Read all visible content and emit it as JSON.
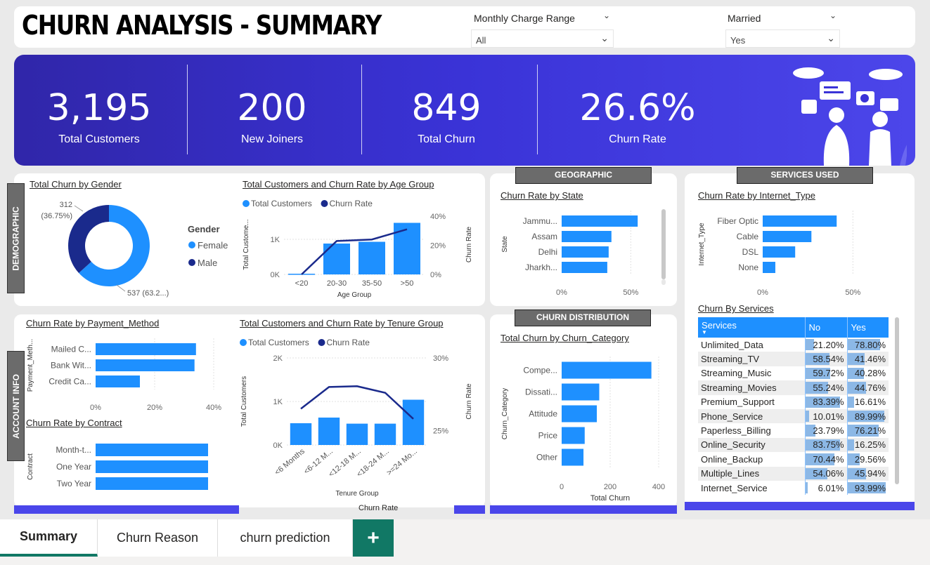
{
  "header": {
    "title": "CHURN ANALYSIS - SUMMARY",
    "slicer_charge": {
      "label": "Monthly Charge Range",
      "value": "All"
    },
    "slicer_married": {
      "label": "Married",
      "value": "Yes"
    }
  },
  "kpis": [
    {
      "value": "3,195",
      "label": "Total Customers"
    },
    {
      "value": "200",
      "label": "New Joiners"
    },
    {
      "value": "849",
      "label": "Total Churn"
    },
    {
      "value": "26.6%",
      "label": "Churn Rate"
    }
  ],
  "sections": {
    "demographic": "DEMOGRAPHIC",
    "account_info": "ACCOUNT INFO",
    "geographic": "GEOGRAPHIC",
    "services_used": "SERVICES USED",
    "churn_distribution": "CHURN DISTRIBUTION"
  },
  "legend_labels": {
    "total_customers": "Total Customers",
    "churn_rate": "Churn Rate"
  },
  "colors": {
    "primary_blue": "#1e90ff",
    "dark_navy": "#1a2a8c",
    "kpi_band": "#3a33d7",
    "tab_green": "#117865"
  },
  "chart_data": [
    {
      "id": "gender",
      "type": "pie",
      "title": "Total Churn by Gender",
      "legend_title": "Gender",
      "slices": [
        {
          "name": "Female",
          "value": 537,
          "label": "537 (63.2...)",
          "color": "#1e90ff"
        },
        {
          "name": "Male",
          "value": 312,
          "label": "312 (36.75%)",
          "color": "#1a2a8c"
        }
      ]
    },
    {
      "id": "age",
      "type": "bar",
      "title": "Total Customers and Churn Rate by Age Group",
      "xlabel": "Age Group",
      "ylabel": "Total Custome...",
      "y2label": "Churn Rate",
      "categories": [
        "<20",
        "20-30",
        "35-50",
        ">50"
      ],
      "series": [
        {
          "name": "Total Customers",
          "values": [
            20,
            880,
            930,
            1470
          ]
        },
        {
          "name": "Churn Rate",
          "values": [
            0,
            23,
            24,
            31
          ]
        }
      ],
      "y_ticks": [
        "0K",
        "1K"
      ],
      "y2_ticks": [
        "0%",
        "20%",
        "40%"
      ],
      "ylim": [
        0,
        1700
      ],
      "y2lim": [
        0,
        41
      ]
    },
    {
      "id": "state",
      "type": "bar",
      "title": "Churn Rate by State",
      "ylabel": "State",
      "categories": [
        "Jammu...",
        "Assam",
        "Delhi",
        "Jharkh..."
      ],
      "values": [
        55,
        36,
        34,
        33
      ],
      "x_ticks": [
        "0%",
        "50%"
      ],
      "xlim": [
        0,
        60
      ]
    },
    {
      "id": "internet",
      "type": "bar",
      "title": "Churn Rate by Internet_Type",
      "ylabel": "Internet_Type",
      "categories": [
        "Fiber Optic",
        "Cable",
        "DSL",
        "None"
      ],
      "values": [
        41,
        27,
        18,
        7
      ],
      "x_ticks": [
        "0%",
        "50%"
      ],
      "xlim": [
        0,
        60
      ]
    },
    {
      "id": "payment",
      "type": "bar",
      "title": "Churn Rate by Payment_Method",
      "ylabel": "Payment_Meth...",
      "categories": [
        "Mailed C...",
        "Bank Wit...",
        "Credit Ca..."
      ],
      "values": [
        34,
        33.5,
        15
      ],
      "x_ticks": [
        "0%",
        "20%",
        "40%"
      ],
      "xlim": [
        0,
        40
      ]
    },
    {
      "id": "contract",
      "type": "bar",
      "title": "Churn Rate by Contract",
      "ylabel": "Contract",
      "categories": [
        "Month-t...",
        "One Year",
        "Two Year"
      ],
      "values": [
        100,
        100,
        100
      ],
      "xlim": [
        0,
        100
      ]
    },
    {
      "id": "tenure",
      "type": "bar",
      "title": "Total Customers and Churn Rate by Tenure Group",
      "xlabel": "Tenure Group",
      "ylabel": "Total Customers",
      "y2label": "Churn Rate",
      "categories": [
        "<6 Months",
        "<6-12 M...",
        "<12-18 M...",
        "<18-24 M...",
        ">=24 Mo..."
      ],
      "series": [
        {
          "name": "Total Customers",
          "values": [
            500,
            630,
            490,
            490,
            1040
          ]
        },
        {
          "name": "Churn Rate",
          "values": [
            26.5,
            28.0,
            28.05,
            27.6,
            25.8
          ]
        }
      ],
      "y_ticks": [
        "0K",
        "1K",
        "2K"
      ],
      "y2_ticks": [
        "25%",
        "30%"
      ],
      "ylim": [
        0,
        2000
      ],
      "y2lim": [
        24,
        30
      ]
    },
    {
      "id": "category",
      "type": "bar",
      "title": "Total Churn by Churn_Category",
      "xlabel": "Total Churn",
      "ylabel": "Churn_Category",
      "categories": [
        "Compe...",
        "Dissati...",
        "Attitude",
        "Price",
        "Other"
      ],
      "values": [
        370,
        155,
        145,
        95,
        90
      ],
      "x_ticks": [
        "0",
        "200",
        "400"
      ],
      "xlim": [
        0,
        400
      ]
    },
    {
      "id": "services",
      "type": "table",
      "title": "Churn By Services",
      "columns": [
        "Services",
        "No",
        "Yes"
      ],
      "rows": [
        {
          "name": "Unlimited_Data",
          "no": "21.20%",
          "yes": "78.80%",
          "no_v": 21.2,
          "yes_v": 78.8
        },
        {
          "name": "Streaming_TV",
          "no": "58.54%",
          "yes": "41.46%",
          "no_v": 58.54,
          "yes_v": 41.46
        },
        {
          "name": "Streaming_Music",
          "no": "59.72%",
          "yes": "40.28%",
          "no_v": 59.72,
          "yes_v": 40.28
        },
        {
          "name": "Streaming_Movies",
          "no": "55.24%",
          "yes": "44.76%",
          "no_v": 55.24,
          "yes_v": 44.76
        },
        {
          "name": "Premium_Support",
          "no": "83.39%",
          "yes": "16.61%",
          "no_v": 83.39,
          "yes_v": 16.61
        },
        {
          "name": "Phone_Service",
          "no": "10.01%",
          "yes": "89.99%",
          "no_v": 10.01,
          "yes_v": 89.99
        },
        {
          "name": "Paperless_Billing",
          "no": "23.79%",
          "yes": "76.21%",
          "no_v": 23.79,
          "yes_v": 76.21
        },
        {
          "name": "Online_Security",
          "no": "83.75%",
          "yes": "16.25%",
          "no_v": 83.75,
          "yes_v": 16.25
        },
        {
          "name": "Online_Backup",
          "no": "70.44%",
          "yes": "29.56%",
          "no_v": 70.44,
          "yes_v": 29.56
        },
        {
          "name": "Multiple_Lines",
          "no": "54.06%",
          "yes": "45.94%",
          "no_v": 54.06,
          "yes_v": 45.94
        },
        {
          "name": "Internet_Service",
          "no": "6.01%",
          "yes": "93.99%",
          "no_v": 6.01,
          "yes_v": 93.99
        }
      ]
    }
  ],
  "extra_label": "Churn Rate",
  "tabs": [
    {
      "label": "Summary"
    },
    {
      "label": "Churn Reason"
    },
    {
      "label": "churn prediction"
    }
  ],
  "add_tab": "+"
}
